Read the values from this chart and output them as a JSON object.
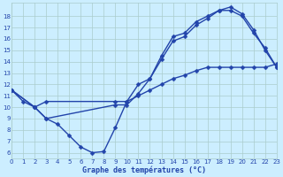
{
  "title": "Graphe des températures (°C)",
  "background_color": "#cceeff",
  "grid_color": "#aacccc",
  "line_color": "#2244aa",
  "xlim": [
    0,
    23
  ],
  "ylim": [
    5.5,
    19.2
  ],
  "xticks": [
    0,
    1,
    2,
    3,
    4,
    5,
    6,
    7,
    8,
    9,
    10,
    11,
    12,
    13,
    14,
    15,
    16,
    17,
    18,
    19,
    20,
    21,
    22,
    23
  ],
  "yticks": [
    6,
    7,
    8,
    9,
    10,
    11,
    12,
    13,
    14,
    15,
    16,
    17,
    18
  ],
  "curve1_x": [
    0,
    1,
    2,
    3,
    4,
    5,
    6,
    7,
    8,
    9,
    10,
    11,
    12,
    13,
    14,
    15,
    16,
    17,
    18,
    19,
    20,
    21,
    22,
    23
  ],
  "curve1_y": [
    11.5,
    10.5,
    10.0,
    9.0,
    8.5,
    7.5,
    6.5,
    6.0,
    6.1,
    8.2,
    10.5,
    12.0,
    12.5,
    14.5,
    16.2,
    16.5,
    17.5,
    18.0,
    18.5,
    18.5,
    18.0,
    16.5,
    15.2,
    13.5
  ],
  "curve2_x": [
    0,
    2,
    3,
    9,
    10,
    11,
    12,
    13,
    14,
    15,
    16,
    17,
    18,
    19,
    20,
    21,
    22,
    23
  ],
  "curve2_y": [
    11.5,
    10.0,
    9.0,
    10.2,
    10.2,
    11.2,
    12.5,
    14.2,
    15.8,
    16.2,
    17.2,
    17.8,
    18.5,
    18.8,
    18.2,
    16.8,
    15.0,
    13.5
  ],
  "curve3_x": [
    0,
    2,
    3,
    9,
    10,
    11,
    12,
    13,
    14,
    15,
    16,
    17,
    18,
    19,
    20,
    21,
    22,
    23
  ],
  "curve3_y": [
    11.5,
    10.0,
    10.5,
    10.5,
    10.5,
    11.0,
    11.5,
    12.0,
    12.5,
    12.8,
    13.2,
    13.5,
    13.5,
    13.5,
    13.5,
    13.5,
    13.5,
    13.8
  ],
  "linewidth": 1.0,
  "markersize": 2.5,
  "xlabel_fontsize": 6.0,
  "tick_fontsize": 5.0
}
